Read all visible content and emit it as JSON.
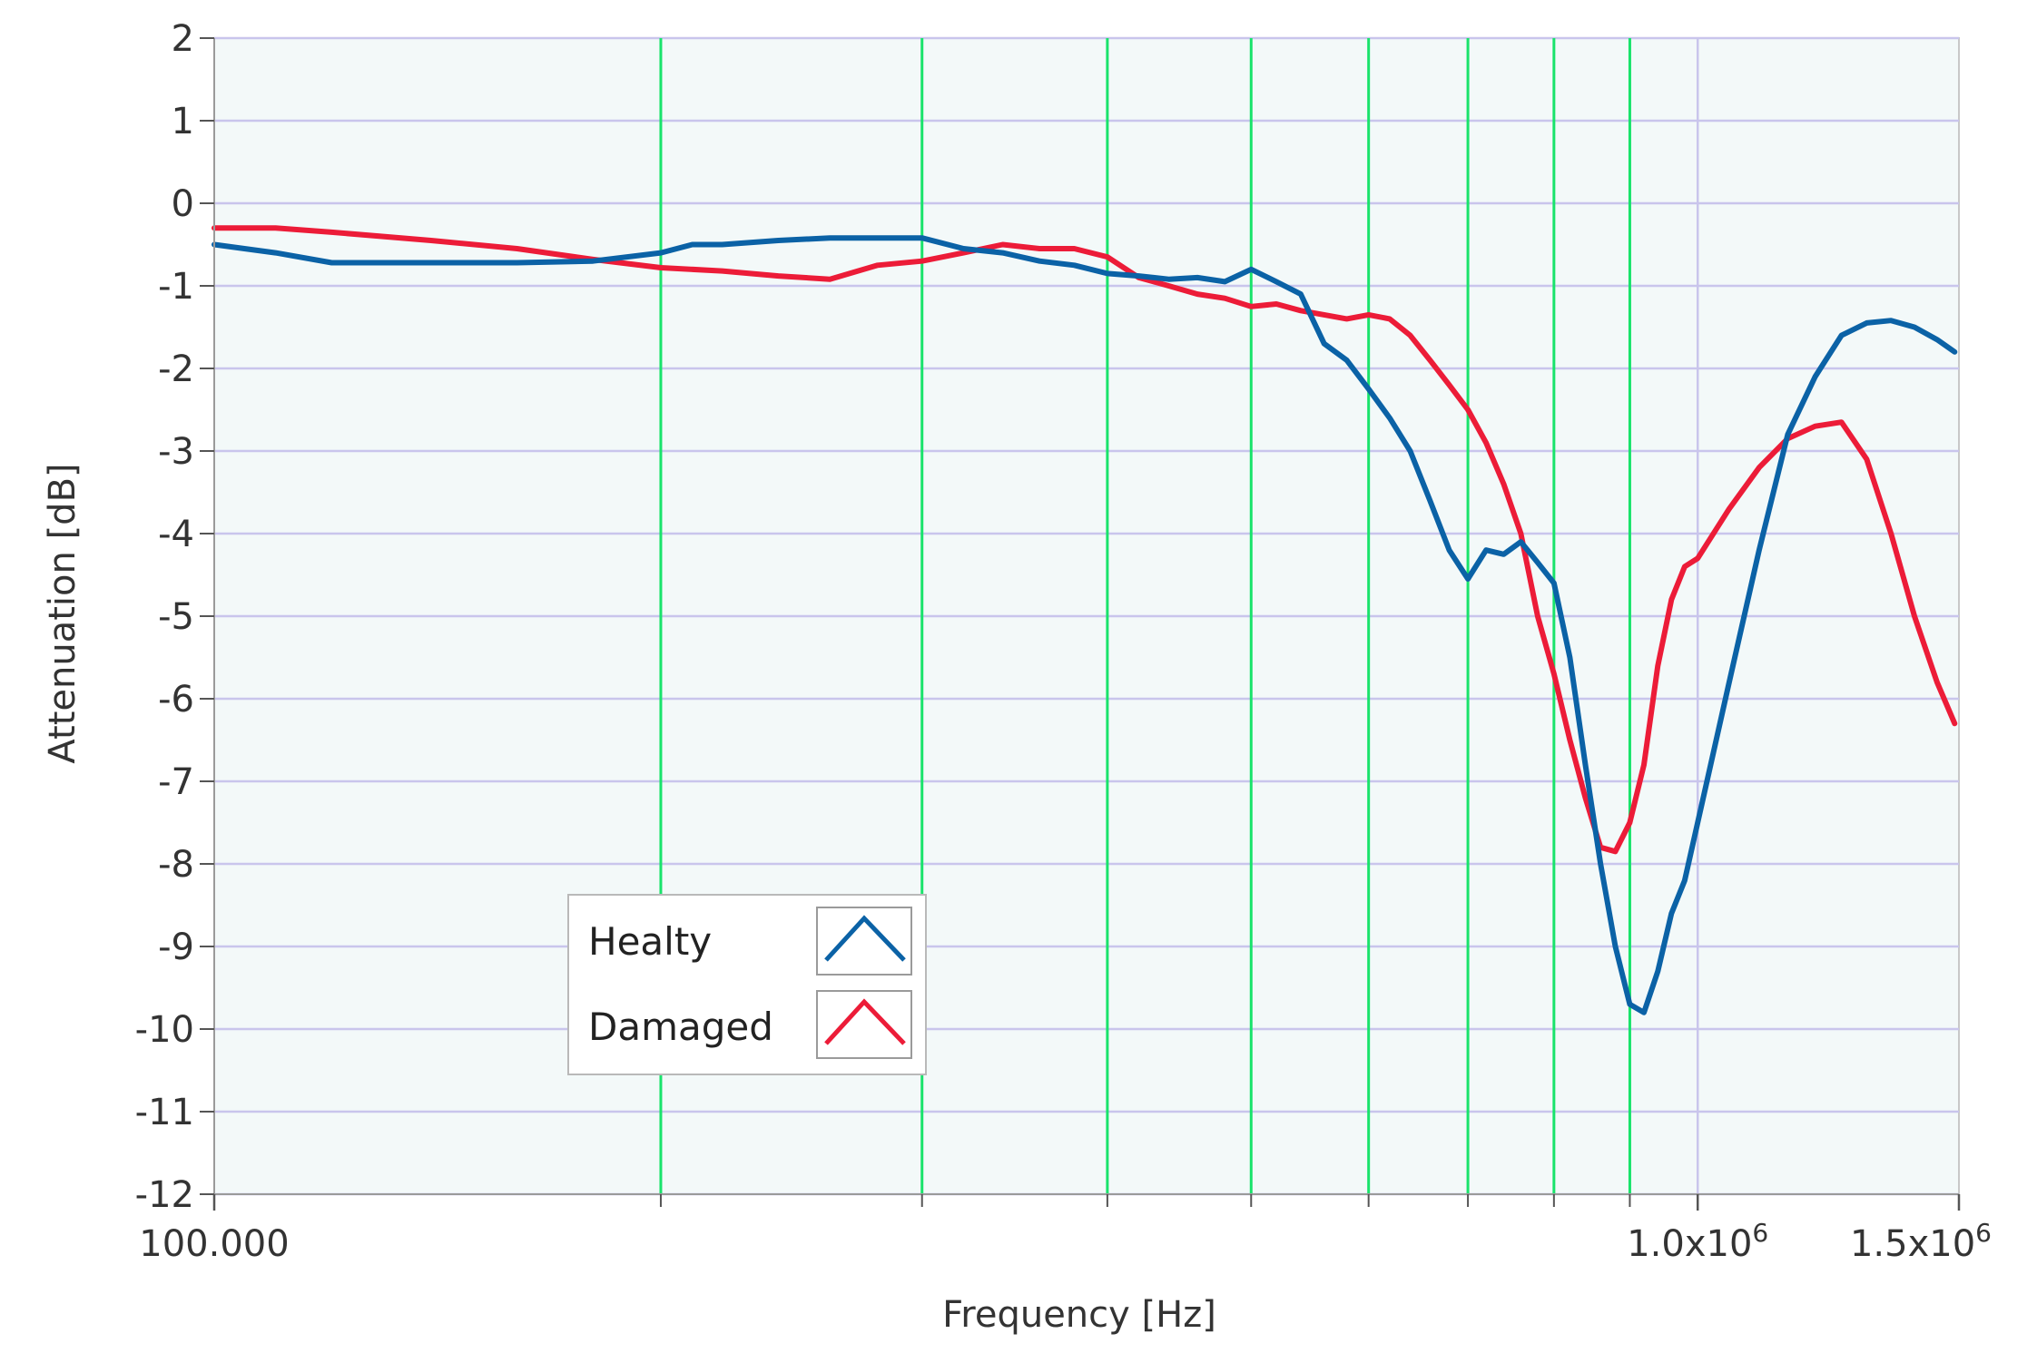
{
  "colors": {
    "plot_background": "#f3f9f9",
    "horizontal_grid": "#c9c5ec",
    "minor_vertical_grid": "#19e36b",
    "major_vertical_grid": "#c9c5ec",
    "healthy": "#0b62a6",
    "damaged": "#ec1c38"
  },
  "chart_data": {
    "type": "line",
    "title": "",
    "xlabel": "Frequency [Hz]",
    "ylabel": "Attenuation [dB]",
    "x_scale": "log",
    "xlim": [
      100000,
      1500000
    ],
    "ylim": [
      -12,
      2
    ],
    "grid": true,
    "legend_position": "lower-left",
    "x_tick_labels": [
      {
        "value": 100000,
        "label": "100.000"
      },
      {
        "value": 1000000,
        "label": "1.0x10",
        "exp": "6"
      },
      {
        "value": 1500000,
        "label": "1.5x10",
        "exp": "6"
      }
    ],
    "x_minor_ticks": [
      200000,
      300000,
      400000,
      500000,
      600000,
      700000,
      800000,
      900000
    ],
    "y_ticks": [
      2,
      1,
      0,
      -1,
      -2,
      -3,
      -4,
      -5,
      -6,
      -7,
      -8,
      -9,
      -10,
      -11,
      -12
    ],
    "series": [
      {
        "name": "Healty",
        "color": "#0b62a6",
        "x": [
          100000,
          110000,
          120000,
          140000,
          160000,
          180000,
          200000,
          210000,
          220000,
          240000,
          260000,
          280000,
          300000,
          320000,
          340000,
          360000,
          380000,
          400000,
          420000,
          440000,
          460000,
          480000,
          500000,
          520000,
          540000,
          560000,
          580000,
          600000,
          620000,
          640000,
          660000,
          680000,
          700000,
          720000,
          740000,
          760000,
          780000,
          800000,
          820000,
          840000,
          860000,
          880000,
          900000,
          920000,
          940000,
          960000,
          980000,
          1000000,
          1050000,
          1100000,
          1150000,
          1200000,
          1250000,
          1300000,
          1350000,
          1400000,
          1450000,
          1490000
        ],
        "y": [
          -0.5,
          -0.6,
          -0.72,
          -0.72,
          -0.72,
          -0.7,
          -0.6,
          -0.5,
          -0.5,
          -0.45,
          -0.42,
          -0.42,
          -0.42,
          -0.55,
          -0.6,
          -0.7,
          -0.75,
          -0.85,
          -0.88,
          -0.92,
          -0.9,
          -0.95,
          -0.8,
          -0.95,
          -1.1,
          -1.7,
          -1.9,
          -2.25,
          -2.6,
          -3.0,
          -3.6,
          -4.2,
          -4.55,
          -4.2,
          -4.25,
          -4.1,
          -4.35,
          -4.6,
          -5.5,
          -6.8,
          -8.0,
          -9.0,
          -9.7,
          -9.8,
          -9.3,
          -8.6,
          -8.2,
          -7.5,
          -5.8,
          -4.2,
          -2.8,
          -2.1,
          -1.6,
          -1.45,
          -1.42,
          -1.5,
          -1.65,
          -1.8
        ]
      },
      {
        "name": "Damaged",
        "color": "#ec1c38",
        "x": [
          100000,
          110000,
          120000,
          140000,
          160000,
          180000,
          200000,
          220000,
          240000,
          260000,
          280000,
          300000,
          320000,
          340000,
          360000,
          380000,
          400000,
          420000,
          440000,
          460000,
          480000,
          500000,
          520000,
          540000,
          560000,
          580000,
          600000,
          620000,
          640000,
          660000,
          680000,
          700000,
          720000,
          740000,
          760000,
          780000,
          800000,
          820000,
          840000,
          860000,
          880000,
          900000,
          920000,
          940000,
          960000,
          980000,
          1000000,
          1050000,
          1100000,
          1150000,
          1200000,
          1250000,
          1300000,
          1350000,
          1400000,
          1450000,
          1490000
        ],
        "y": [
          -0.3,
          -0.3,
          -0.35,
          -0.45,
          -0.55,
          -0.68,
          -0.78,
          -0.82,
          -0.88,
          -0.92,
          -0.75,
          -0.7,
          -0.6,
          -0.5,
          -0.55,
          -0.55,
          -0.65,
          -0.9,
          -1.0,
          -1.1,
          -1.15,
          -1.25,
          -1.22,
          -1.3,
          -1.35,
          -1.4,
          -1.35,
          -1.4,
          -1.6,
          -1.9,
          -2.2,
          -2.5,
          -2.9,
          -3.4,
          -4.0,
          -5.0,
          -5.7,
          -6.5,
          -7.2,
          -7.8,
          -7.85,
          -7.5,
          -6.8,
          -5.6,
          -4.8,
          -4.4,
          -4.3,
          -3.7,
          -3.2,
          -2.85,
          -2.7,
          -2.65,
          -3.1,
          -4.0,
          -5.0,
          -5.8,
          -6.3
        ]
      }
    ]
  }
}
